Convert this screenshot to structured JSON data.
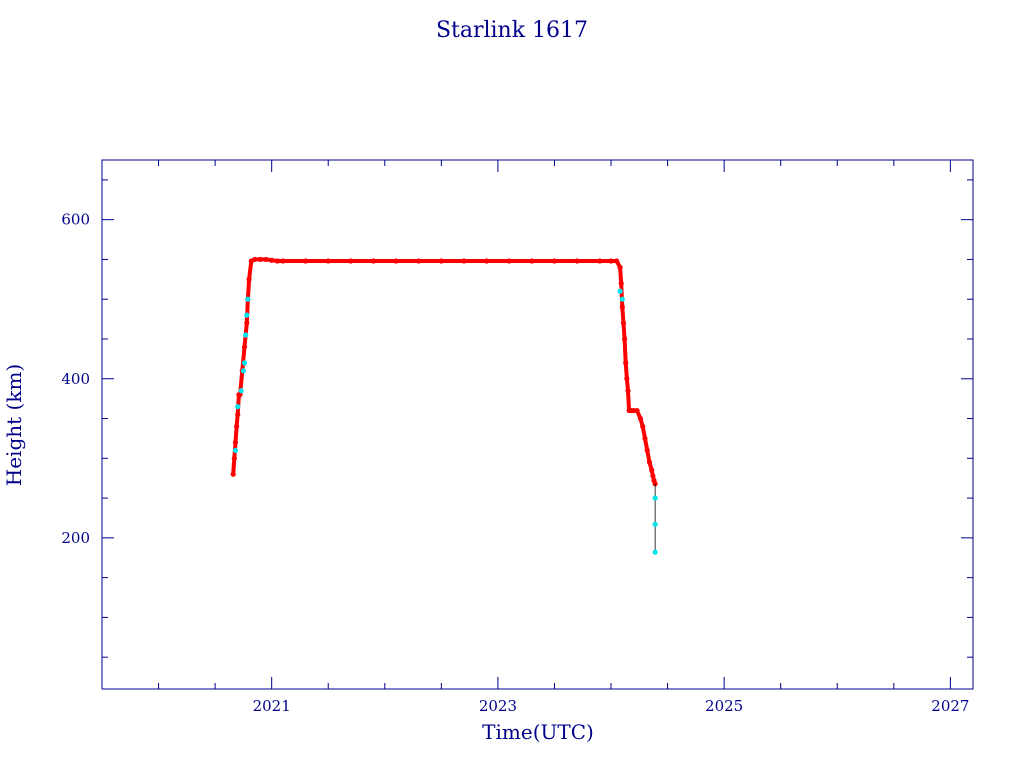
{
  "chart_data": {
    "type": "scatter",
    "title": "Starlink 1617",
    "xlabel": "Time(UTC)",
    "ylabel": "Height (km)",
    "xlim": [
      2019.5,
      2027.2
    ],
    "ylim": [
      10,
      675
    ],
    "x_ticks": [
      {
        "value": 2021,
        "label": "2021"
      },
      {
        "value": 2023,
        "label": "2023"
      },
      {
        "value": 2025,
        "label": "2025"
      },
      {
        "value": 2027,
        "label": "2027"
      }
    ],
    "y_ticks": [
      {
        "value": 200,
        "label": "200"
      },
      {
        "value": 400,
        "label": "400"
      },
      {
        "value": 600,
        "label": "600"
      }
    ],
    "grid": false,
    "legend": "none",
    "colors": {
      "frame": "#00008b",
      "text": "#00008b",
      "main_series": "#ff0000",
      "alt_series": "#00e5ee",
      "line": "#000000"
    },
    "series": [
      {
        "role": "main",
        "x": [
          2020.66,
          2020.67,
          2020.68,
          2020.69,
          2020.7,
          2020.71,
          2020.72,
          2020.74,
          2020.76,
          2020.78,
          2020.79,
          2020.8,
          2020.82,
          2020.85,
          2020.9,
          2020.95,
          2021.0,
          2021.05,
          2021.1,
          2021.3,
          2021.5,
          2021.7,
          2021.9,
          2022.1,
          2022.3,
          2022.5,
          2022.7,
          2022.9,
          2023.1,
          2023.3,
          2023.5,
          2023.7,
          2023.9,
          2024.0,
          2024.05,
          2024.08,
          2024.09,
          2024.1,
          2024.11,
          2024.12,
          2024.13,
          2024.14,
          2024.15,
          2024.16,
          2024.18,
          2024.2,
          2024.23,
          2024.26,
          2024.28,
          2024.3,
          2024.32,
          2024.34,
          2024.36,
          2024.37,
          2024.38,
          2024.39
        ],
        "y": [
          280,
          300,
          320,
          340,
          355,
          380,
          380,
          410,
          440,
          470,
          500,
          525,
          548,
          550,
          550,
          550,
          549,
          548,
          548,
          548,
          548,
          548,
          548,
          548,
          548,
          548,
          548,
          548,
          548,
          548,
          548,
          548,
          548,
          548,
          548,
          540,
          520,
          490,
          470,
          450,
          420,
          400,
          385,
          360,
          360,
          360,
          360,
          350,
          340,
          325,
          310,
          295,
          285,
          278,
          272,
          268
        ]
      },
      {
        "role": "alt",
        "x": [
          2020.68,
          2020.7,
          2020.73,
          2020.75,
          2020.76,
          2020.77,
          2020.78,
          2020.79,
          2024.08,
          2024.1,
          2024.39,
          2024.39,
          2024.39
        ],
        "y": [
          310,
          365,
          385,
          410,
          420,
          455,
          480,
          500,
          510,
          500,
          250,
          217,
          182
        ]
      }
    ]
  }
}
